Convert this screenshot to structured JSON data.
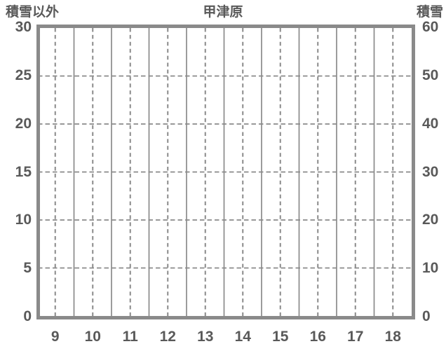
{
  "page": {
    "background": "#ffffff"
  },
  "chart_data": {
    "type": "line",
    "title": "甲津原",
    "series": [],
    "categories": [
      9,
      10,
      11,
      12,
      13,
      14,
      15,
      16,
      17,
      18
    ],
    "x_ticks": [
      "9",
      "10",
      "11",
      "12",
      "13",
      "14",
      "15",
      "16",
      "17",
      "18"
    ],
    "left_axis": {
      "label": "積雪以外",
      "ticks": [
        "30",
        "25",
        "20",
        "15",
        "10",
        "5",
        "0"
      ],
      "range": [
        0,
        30
      ]
    },
    "right_axis": {
      "label": "積雪",
      "ticks": [
        "60",
        "50",
        "40",
        "30",
        "20",
        "10",
        "0"
      ],
      "range": [
        0,
        60
      ]
    },
    "grid": true,
    "legend": false,
    "colors": {
      "grid": "#8a8a8a",
      "border": "#8a8a8a",
      "text": "#595959",
      "background": "#ffffff"
    }
  }
}
